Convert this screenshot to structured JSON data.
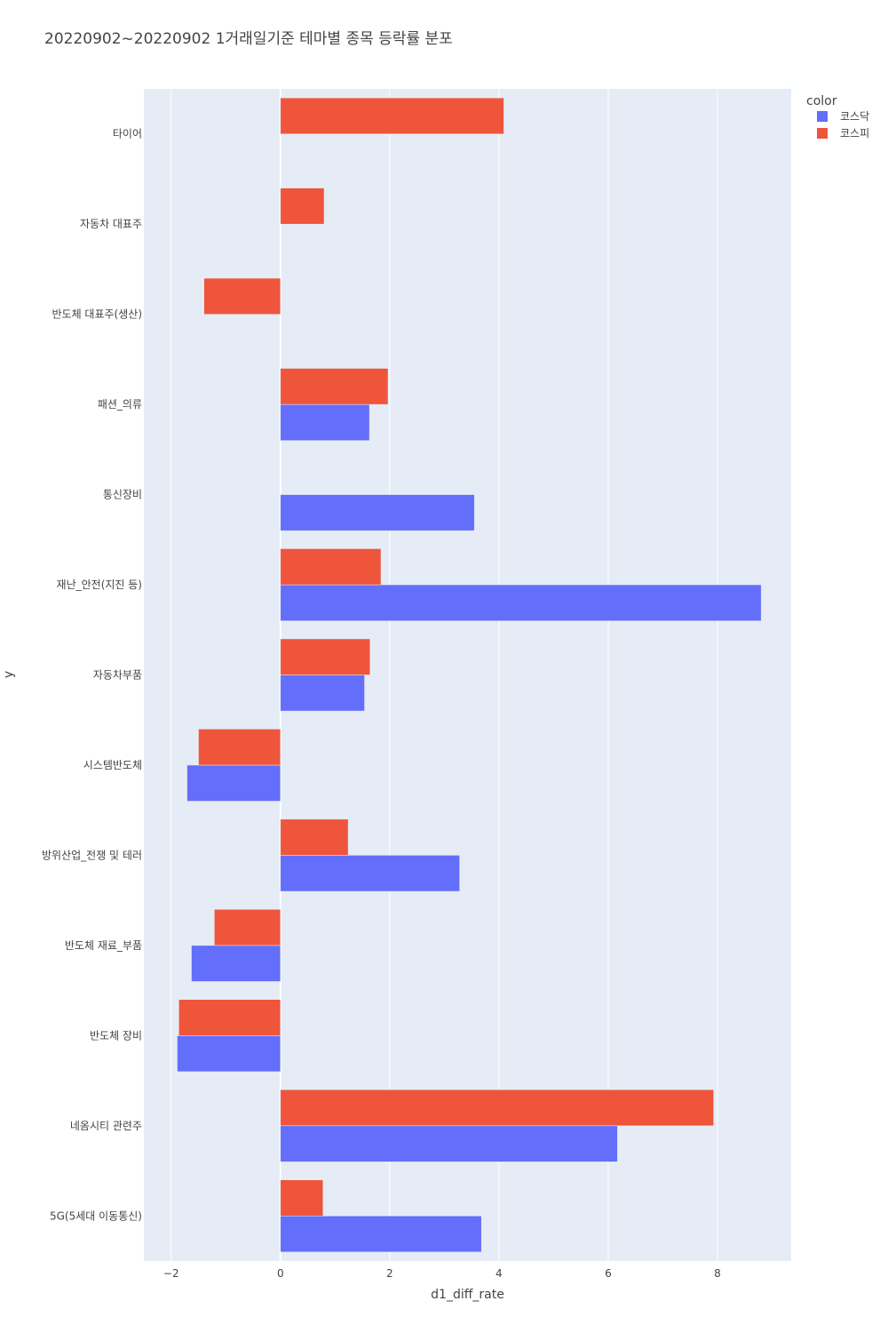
{
  "chart_data": {
    "type": "bar",
    "orientation": "horizontal",
    "barmode": "group",
    "title": "20220902~20220902 1거래일기준 테마별 종목 등락률 분포",
    "xlabel": "d1_diff_rate",
    "ylabel": "y",
    "xlim": [
      -2.5,
      9.35
    ],
    "xticks": [
      -2,
      0,
      2,
      4,
      6,
      8
    ],
    "xtick_labels": [
      "−2",
      "0",
      "2",
      "4",
      "6",
      "8"
    ],
    "grid": true,
    "legend": {
      "title": "color",
      "placement": "top-right"
    },
    "categories": [
      "타이어",
      "자동차 대표주",
      "반도체 대표주(생산)",
      "패션_의류",
      "통신장비",
      "재난_안전(지진 등)",
      "자동차부품",
      "시스템반도체",
      "방위산업_전쟁 및 테러",
      "반도체 재료_부품",
      "반도체 장비",
      "네옴시티 관련주",
      "5G(5세대 이동통신)"
    ],
    "series": [
      {
        "name": "코스닥",
        "color": "#636efa",
        "values": [
          null,
          null,
          null,
          1.63,
          3.55,
          8.8,
          1.54,
          -1.71,
          3.28,
          -1.63,
          -1.89,
          6.17,
          3.68
        ]
      },
      {
        "name": "코스피",
        "color": "#ef553b",
        "values": [
          4.09,
          0.8,
          -1.4,
          1.97,
          null,
          1.84,
          1.64,
          -1.5,
          1.24,
          -1.21,
          -1.86,
          7.93,
          0.78
        ]
      }
    ]
  }
}
